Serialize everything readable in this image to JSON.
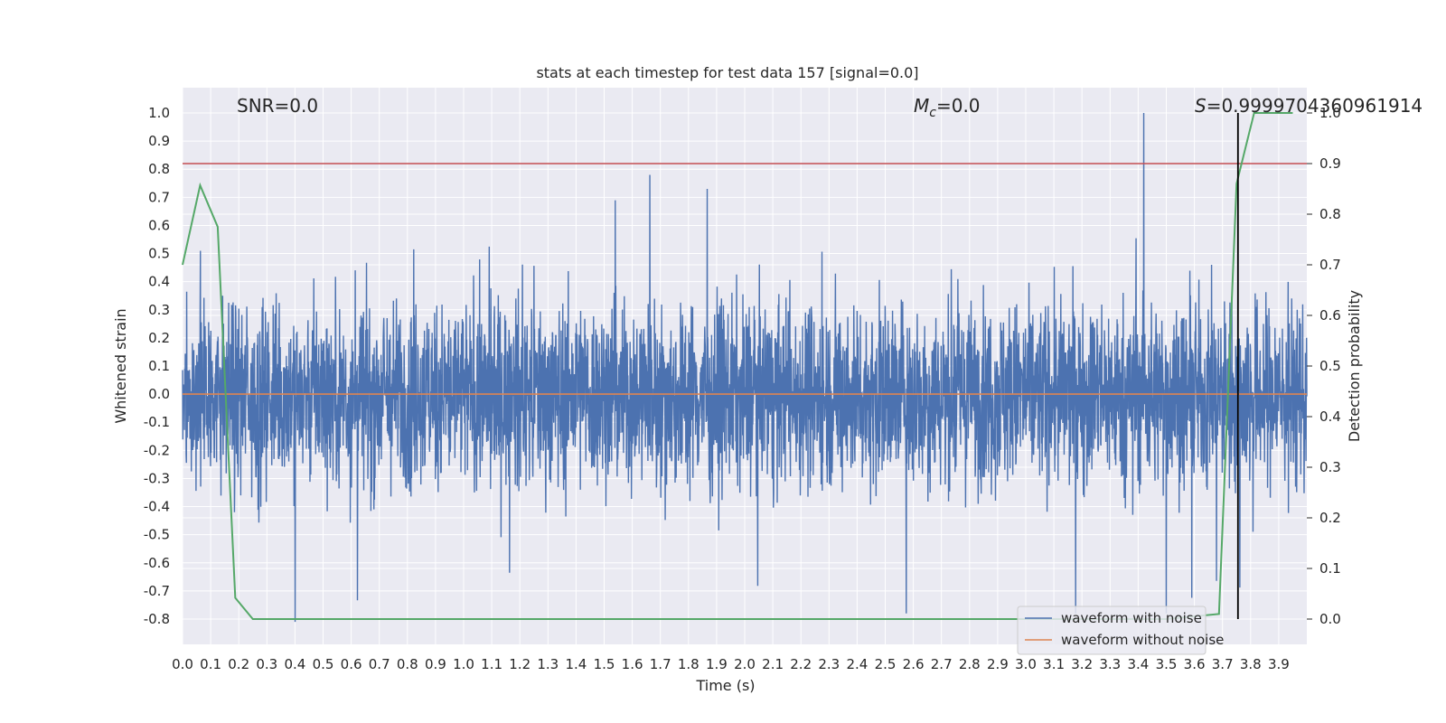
{
  "chart_data": {
    "type": "line",
    "title": "stats at each timestep for test data 157 [signal=0.0]",
    "xlabel": "Time (s)",
    "ylabel": "Whitened strain",
    "y2label": "Detection probability",
    "xlim": [
      0.0,
      4.0
    ],
    "ylim": [
      -0.89,
      1.09
    ],
    "y2lim": [
      -0.05,
      1.05
    ],
    "x_ticks": [
      "0.0",
      "0.1",
      "0.2",
      "0.3",
      "0.4",
      "0.5",
      "0.6",
      "0.7",
      "0.8",
      "0.9",
      "1.0",
      "1.1",
      "1.2",
      "1.3",
      "1.4",
      "1.5",
      "1.6",
      "1.7",
      "1.8",
      "1.9",
      "2.0",
      "2.1",
      "2.2",
      "2.3",
      "2.4",
      "2.5",
      "2.6",
      "2.7",
      "2.8",
      "2.9",
      "3.0",
      "3.1",
      "3.2",
      "3.3",
      "3.4",
      "3.5",
      "3.6",
      "3.7",
      "3.8",
      "3.9"
    ],
    "y_ticks": [
      "1.0",
      "0.9",
      "0.8",
      "0.7",
      "0.6",
      "0.5",
      "0.4",
      "0.3",
      "0.2",
      "0.1",
      "0.0",
      "-0.1",
      "-0.2",
      "-0.3",
      "-0.4",
      "-0.5",
      "-0.6",
      "-0.7",
      "-0.8"
    ],
    "y2_ticks": [
      "1.0",
      "0.9",
      "0.8",
      "0.7",
      "0.6",
      "0.5",
      "0.4",
      "0.3",
      "0.2",
      "0.1",
      "0.0"
    ],
    "grid": true,
    "legend_position": "lower-right",
    "series": [
      {
        "name": "waveform with noise",
        "axis": "left",
        "color": "#4c72b0",
        "description_values": "dense noise roughly between -0.8 and 1.0",
        "peaks": [
          {
            "x": 3.42,
            "y": 1.0
          },
          {
            "x": 0.4,
            "y": -0.81
          },
          {
            "x": 3.5,
            "y": -0.78
          }
        ]
      },
      {
        "name": "waveform without noise",
        "axis": "left",
        "color": "#dd8452",
        "x": [
          0.0,
          4.0
        ],
        "values": [
          0.0,
          0.0
        ]
      },
      {
        "name": "",
        "axis": "right",
        "color": "#55a868",
        "x": [
          0.0,
          0.0625,
          0.125,
          0.1875,
          0.25,
          0.3,
          3.5,
          3.6875,
          3.75,
          3.8125,
          3.875,
          3.95
        ],
        "values": [
          0.7,
          0.857,
          0.775,
          0.042,
          0.0,
          0.0,
          0.0,
          0.01,
          0.86,
          1.0,
          1.0,
          1.0
        ]
      }
    ],
    "threshold": {
      "axis": "right",
      "value": 0.9,
      "color": "#c44e52"
    },
    "vline": {
      "x": 3.755,
      "axis": "right",
      "from": 0.0,
      "to": 1.0,
      "color": "#000000"
    },
    "annotations": {
      "snr": "SNR=0.0",
      "mc_symbol": "M",
      "mc_sub": "c",
      "mc_value": "=0.0",
      "s_symbol": "S",
      "s_value": "=0.9999704360961914"
    }
  }
}
